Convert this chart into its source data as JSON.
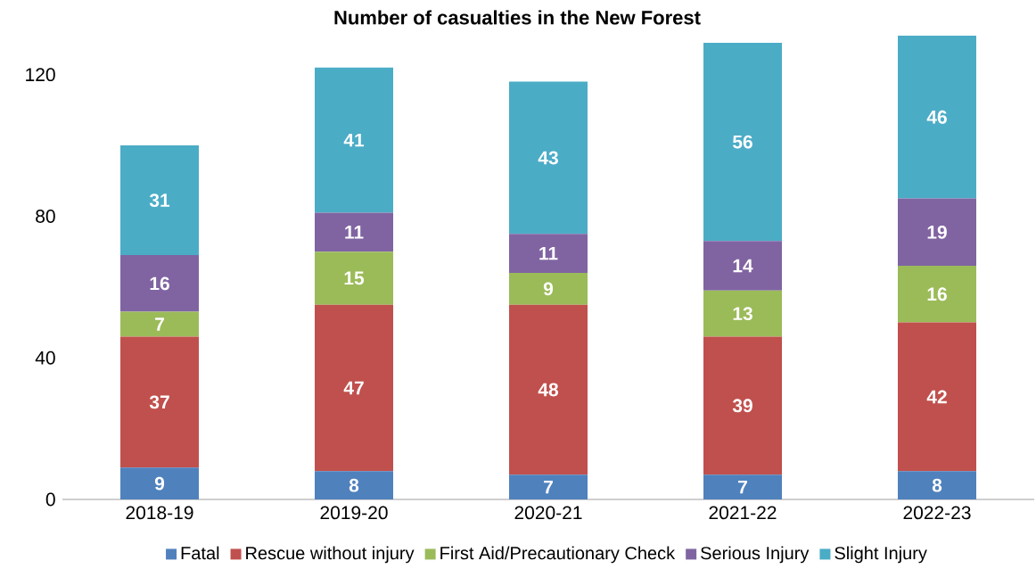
{
  "chart_data": {
    "type": "bar",
    "title": "Number of casualties in the New Forest",
    "stacked": true,
    "data_labels": true,
    "legend": "bottom",
    "grid": false,
    "categories": [
      "2018-19",
      "2019-20",
      "2020-21",
      "2021-22",
      "2022-23"
    ],
    "ylim": [
      0,
      131
    ],
    "yticks": [
      0,
      40,
      80,
      120
    ],
    "series": [
      {
        "name": "Fatal",
        "color": "#4f81bd",
        "values": [
          9,
          8,
          7,
          7,
          8
        ]
      },
      {
        "name": "Rescue without injury",
        "color": "#c0504d",
        "values": [
          37,
          47,
          48,
          39,
          42
        ]
      },
      {
        "name": "First Aid/Precautionary Check",
        "color": "#9bbb59",
        "values": [
          7,
          15,
          9,
          13,
          16
        ]
      },
      {
        "name": "Serious Injury",
        "color": "#8064a2",
        "values": [
          16,
          11,
          11,
          14,
          19
        ]
      },
      {
        "name": "Slight Injury",
        "color": "#4bacc6",
        "values": [
          31,
          41,
          43,
          56,
          46
        ]
      }
    ]
  }
}
